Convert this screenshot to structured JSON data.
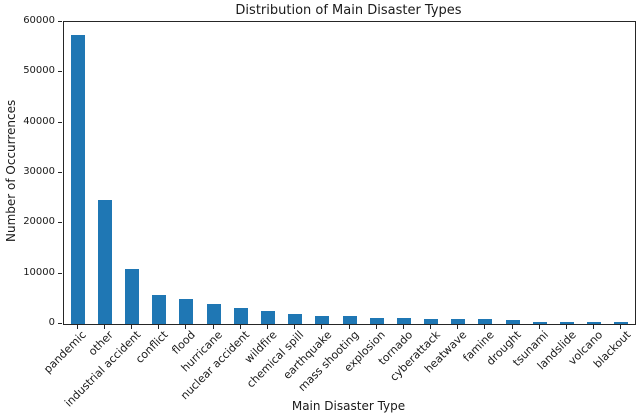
{
  "chart_data": {
    "type": "bar",
    "title": "Distribution of Main Disaster Types",
    "xlabel": "Main Disaster Type",
    "ylabel": "Number of Occurrences",
    "categories": [
      "pandemic",
      "other",
      "industrial accident",
      "conflict",
      "flood",
      "hurricane",
      "nuclear accident",
      "wildfire",
      "chemical spill",
      "earthquake",
      "mass shooting",
      "explosion",
      "tornado",
      "cyberattack",
      "heatwave",
      "famine",
      "drought",
      "tsunami",
      "landslide",
      "volcano",
      "blackout"
    ],
    "values": [
      57500,
      24600,
      10900,
      5800,
      4900,
      4000,
      3200,
      2550,
      2050,
      1600,
      1500,
      1200,
      1150,
      1050,
      1000,
      950,
      800,
      450,
      430,
      410,
      390
    ],
    "ylim": [
      0,
      60000
    ],
    "yticks": [
      0,
      10000,
      20000,
      30000,
      40000,
      50000,
      60000
    ],
    "x_tick_rotation": 45,
    "grid": false,
    "legend": "none",
    "bar_color": "#1f77b4",
    "axis_color": "#262626",
    "background_color": "#ffffff"
  }
}
